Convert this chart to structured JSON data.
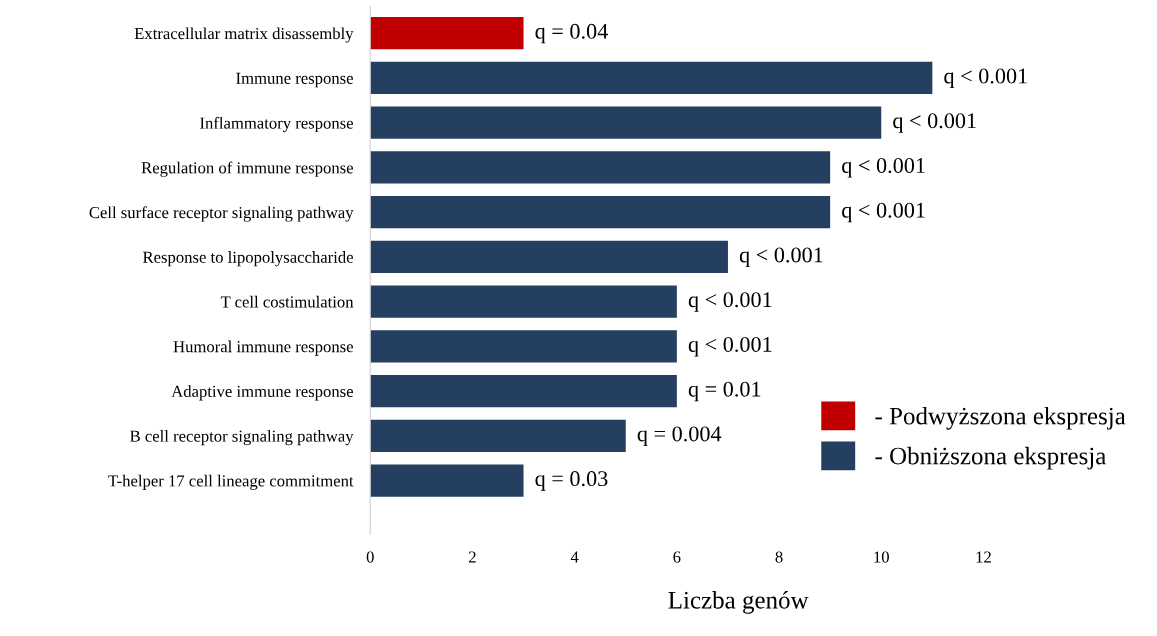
{
  "chart_data": {
    "type": "bar",
    "orientation": "horizontal",
    "xlabel": "Liczba genów",
    "categories": [
      "Extracellular matrix disassembly",
      "Immune response",
      "Inflammatory response",
      "Regulation of immune response",
      "Cell surface receptor signaling pathway",
      "Response to lipopolysaccharide",
      "T cell costimulation",
      "Humoral immune response",
      "Adaptive immune response",
      "B cell receptor signaling pathway",
      "T-helper 17 cell lineage commitment"
    ],
    "series": [
      {
        "name": "- Podwyższona ekspresja",
        "color": "#c00000",
        "values": [
          3,
          null,
          null,
          null,
          null,
          null,
          null,
          null,
          null,
          null,
          null
        ]
      },
      {
        "name": "- Obniższona ekspresja",
        "color": "#243f60",
        "values": [
          null,
          11,
          10,
          9,
          9,
          7,
          6,
          6,
          6,
          5,
          3
        ]
      }
    ],
    "annotations": [
      {
        "text": "q = 0.04",
        "x": 3,
        "y": "Extracellular matrix disassembly"
      },
      {
        "text": "q < 0.001",
        "x": 11,
        "y": "Immune response"
      },
      {
        "text": "q < 0.001",
        "x": 10,
        "y": "Inflammatory response"
      },
      {
        "text": "q < 0.001",
        "x": 9,
        "y": "Regulation of immune response"
      },
      {
        "text": "q < 0.001",
        "x": 9,
        "y": "Cell surface receptor signaling pathway"
      },
      {
        "text": "q < 0.001",
        "x": 7,
        "y": "Response to lipopolysaccharide"
      },
      {
        "text": "q < 0.001",
        "x": 6,
        "y": "T cell costimulation"
      },
      {
        "text": "q < 0.001",
        "x": 6,
        "y": "Humoral immune response"
      },
      {
        "text": "q = 0.01",
        "x": 6,
        "y": "Adaptive immune response"
      },
      {
        "text": "q = 0.004",
        "x": 5,
        "y": "B cell receptor signaling pathway"
      },
      {
        "text": "q = 0.03",
        "x": 3,
        "y": "T-helper 17 cell lineage commitment"
      }
    ],
    "xlim": [
      0,
      12
    ],
    "xticks": [
      0,
      2,
      4,
      6,
      8,
      10,
      12
    ],
    "grid": false,
    "legend": "bottom right"
  }
}
